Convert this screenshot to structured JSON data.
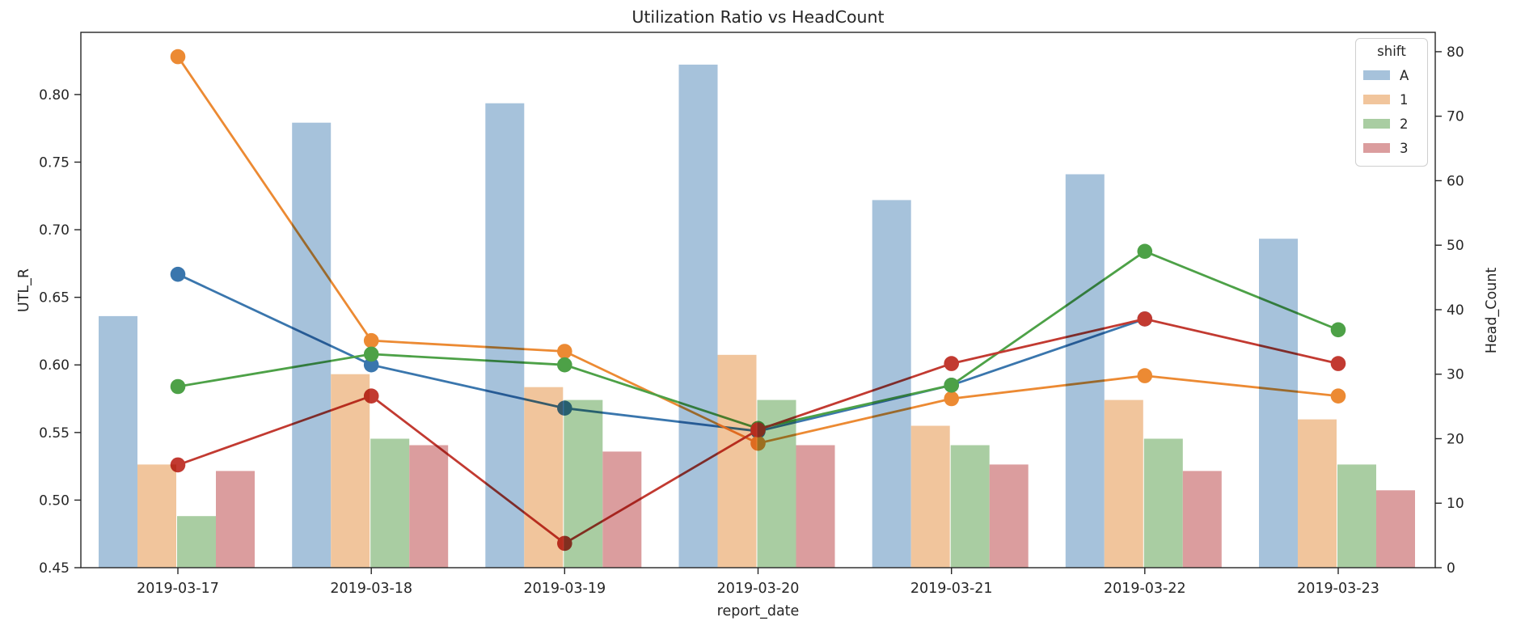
{
  "chart_data": {
    "type": "bar+line",
    "title": "Utilization Ratio vs HeadCount",
    "xlabel": "report_date",
    "ylabel_left": "UTL_R",
    "ylabel_right": "Head_Count",
    "categories": [
      "2019-03-17",
      "2019-03-18",
      "2019-03-19",
      "2019-03-20",
      "2019-03-21",
      "2019-03-22",
      "2019-03-23"
    ],
    "legend": {
      "title": "shift",
      "position": "upper right",
      "entries": [
        {
          "label": "A",
          "color": "#a6c2db"
        },
        {
          "label": "1",
          "color": "#f1c59c"
        },
        {
          "label": "2",
          "color": "#a9cda2"
        },
        {
          "label": "3",
          "color": "#db9d9e"
        }
      ]
    },
    "bar_series": [
      {
        "name": "A",
        "axis": "right",
        "color": "#a6c2db",
        "values": [
          39,
          69,
          72,
          78,
          57,
          61,
          51
        ]
      },
      {
        "name": "1",
        "axis": "right",
        "color": "#f1c59c",
        "values": [
          16,
          30,
          28,
          33,
          22,
          26,
          23
        ]
      },
      {
        "name": "2",
        "axis": "right",
        "color": "#a9cda2",
        "values": [
          8,
          20,
          26,
          26,
          19,
          20,
          16
        ]
      },
      {
        "name": "3",
        "axis": "right",
        "color": "#db9d9e",
        "values": [
          15,
          19,
          18,
          19,
          16,
          15,
          12
        ]
      }
    ],
    "line_series": [
      {
        "name": "A",
        "axis": "left",
        "color": "#3a76ad",
        "values": [
          0.667,
          0.6,
          0.568,
          0.551,
          0.585,
          0.634,
          null
        ]
      },
      {
        "name": "1",
        "axis": "left",
        "color": "#ec8a33",
        "values": [
          0.828,
          0.618,
          0.61,
          0.542,
          0.575,
          0.592,
          0.577
        ]
      },
      {
        "name": "2",
        "axis": "left",
        "color": "#4da147",
        "values": [
          0.584,
          0.608,
          0.6,
          0.553,
          0.585,
          0.684,
          0.626
        ]
      },
      {
        "name": "3",
        "axis": "left",
        "color": "#c23a31",
        "values": [
          0.526,
          0.577,
          0.468,
          0.552,
          0.601,
          0.634,
          0.601
        ]
      }
    ],
    "axes": {
      "left_ticks": [
        0.45,
        0.5,
        0.55,
        0.6,
        0.65,
        0.7,
        0.75,
        0.8
      ],
      "left_range": [
        0.45,
        0.846
      ],
      "right_ticks": [
        0,
        10,
        20,
        30,
        40,
        50,
        60,
        70,
        80
      ],
      "right_range": [
        0,
        83
      ],
      "grid": false
    }
  }
}
